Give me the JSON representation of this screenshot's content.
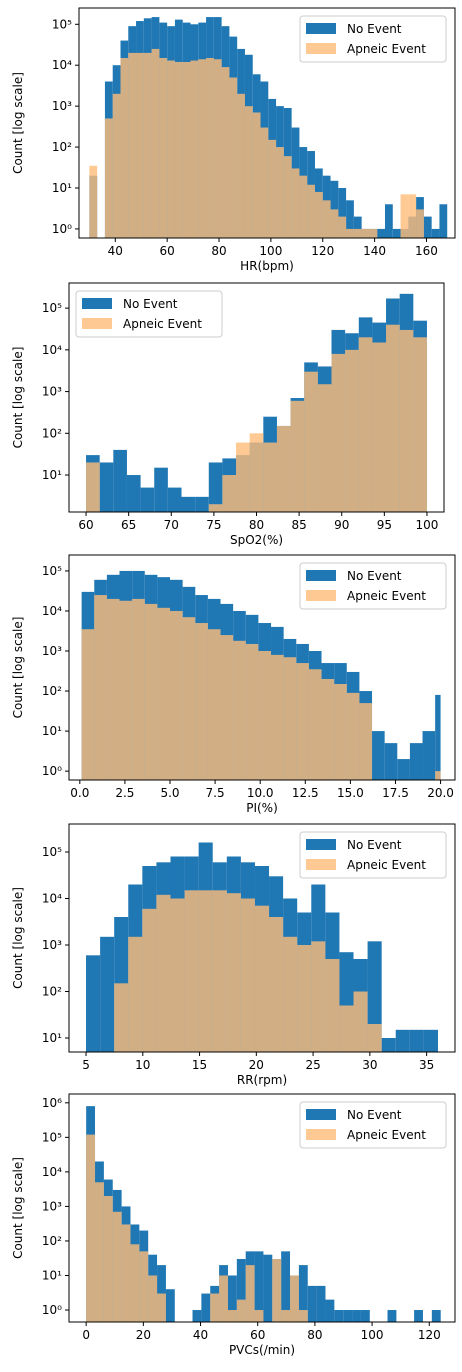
{
  "figure_ylabel": "Count [log scale]",
  "legend_labels": [
    "No Event",
    "Apneic Event"
  ],
  "colors": {
    "no_event": "#1f77b4",
    "apneic_event": "#ffbb78",
    "overlap": "#8c7e69"
  },
  "chart_data": [
    {
      "type": "bar",
      "xlabel": "HR(bpm)",
      "ylabel": "Count [log scale]",
      "yscale": "log",
      "xlim": [
        26,
        171
      ],
      "ylim": [
        0.6,
        250000
      ],
      "xticks": [
        40,
        60,
        80,
        100,
        120,
        140,
        160
      ],
      "yticks": [
        {
          "value": 1,
          "label": "10⁰"
        },
        {
          "value": 10,
          "label": "10¹"
        },
        {
          "value": 100,
          "label": "10²"
        },
        {
          "value": 1000,
          "label": "10³"
        },
        {
          "value": 10000,
          "label": "10⁴"
        },
        {
          "value": 100000,
          "label": "10⁵"
        }
      ],
      "legend": "top-right",
      "bin_edges": [
        30,
        33,
        36,
        39,
        42,
        45,
        48,
        51,
        54,
        57,
        60,
        63,
        66,
        69,
        72,
        75,
        78,
        81,
        84,
        87,
        90,
        93,
        96,
        99,
        102,
        105,
        108,
        111,
        114,
        117,
        120,
        123,
        126,
        129,
        132,
        135,
        138,
        141,
        144,
        147,
        150,
        153,
        156,
        159,
        162,
        165,
        168
      ],
      "series": [
        {
          "name": "No Event",
          "values": [
            20,
            0,
            4000,
            10000,
            40000,
            90000,
            120000,
            140000,
            150000,
            110000,
            90000,
            130000,
            110000,
            100000,
            110000,
            150000,
            150000,
            90000,
            50000,
            25000,
            18000,
            6000,
            4000,
            1500,
            1000,
            900,
            300,
            100,
            80,
            30,
            20,
            15,
            10,
            5,
            2,
            1,
            1,
            1,
            4,
            1,
            1,
            2,
            6,
            2,
            1,
            4
          ]
        },
        {
          "name": "Apneic Event",
          "values": [
            35,
            0,
            500,
            2000,
            15000,
            20000,
            20000,
            20000,
            25000,
            15000,
            13000,
            12000,
            12000,
            13000,
            14000,
            15000,
            14000,
            9000,
            5000,
            2000,
            1000,
            700,
            300,
            150,
            100,
            60,
            30,
            20,
            12,
            8,
            5,
            3,
            2,
            1,
            1,
            1,
            1,
            0,
            0,
            0,
            7,
            7,
            3,
            0,
            0,
            0
          ]
        }
      ]
    },
    {
      "type": "bar",
      "xlabel": "SpO2(%)",
      "ylabel": "Count [log scale]",
      "yscale": "log",
      "xlim": [
        58,
        102
      ],
      "ylim": [
        1.3,
        400000
      ],
      "xticks": [
        60,
        65,
        70,
        75,
        80,
        85,
        90,
        95,
        100
      ],
      "yticks": [
        {
          "value": 10,
          "label": "10¹"
        },
        {
          "value": 100,
          "label": "10²"
        },
        {
          "value": 1000,
          "label": "10³"
        },
        {
          "value": 10000,
          "label": "10⁴"
        },
        {
          "value": 100000,
          "label": "10⁵"
        }
      ],
      "legend": "top-left",
      "bin_edges": [
        60,
        61.6,
        63.2,
        64.8,
        66.4,
        68,
        69.6,
        71.2,
        72.8,
        74.4,
        76,
        77.6,
        79.2,
        80.8,
        82.4,
        84,
        85.6,
        87.2,
        88.8,
        90.4,
        92,
        93.6,
        95.2,
        96.8,
        98.4,
        100
      ],
      "series": [
        {
          "name": "No Event",
          "values": [
            30,
            20,
            40,
            10,
            5,
            15,
            5,
            3,
            3,
            20,
            25,
            30,
            60,
            250,
            150,
            700,
            5000,
            4000,
            30000,
            25000,
            60000,
            45000,
            170000,
            220000,
            50000
          ]
        },
        {
          "name": "Apneic Event",
          "values": [
            20,
            0,
            0,
            0,
            0,
            0,
            0,
            0,
            0,
            2,
            10,
            60,
            100,
            60,
            150,
            600,
            3000,
            1500,
            8000,
            10000,
            20000,
            15000,
            40000,
            30000,
            20000
          ]
        }
      ]
    },
    {
      "type": "bar",
      "xlabel": "PI(%)",
      "ylabel": "Count [log scale]",
      "yscale": "log",
      "xlim": [
        -0.6,
        20.8
      ],
      "ylim": [
        0.6,
        250000
      ],
      "xticks": [
        {
          "value": 0,
          "label": "0.0"
        },
        {
          "value": 2.5,
          "label": "2.5"
        },
        {
          "value": 5,
          "label": "5.0"
        },
        {
          "value": 7.5,
          "label": "7.5"
        },
        {
          "value": 10,
          "label": "10.0"
        },
        {
          "value": 12.5,
          "label": "12.5"
        },
        {
          "value": 15,
          "label": "15.0"
        },
        {
          "value": 17.5,
          "label": "17.5"
        },
        {
          "value": 20,
          "label": "20.0"
        }
      ],
      "yticks": [
        {
          "value": 1,
          "label": "10⁰"
        },
        {
          "value": 10,
          "label": "10¹"
        },
        {
          "value": 100,
          "label": "10²"
        },
        {
          "value": 1000,
          "label": "10³"
        },
        {
          "value": 10000,
          "label": "10⁴"
        },
        {
          "value": 100000,
          "label": "10⁵"
        }
      ],
      "legend": "top-right",
      "bin_edges": [
        0.1,
        0.8,
        1.5,
        2.2,
        2.9,
        3.6,
        4.3,
        5,
        5.7,
        6.4,
        7.1,
        7.8,
        8.5,
        9.2,
        9.9,
        10.6,
        11.3,
        12,
        12.7,
        13.4,
        14.1,
        14.8,
        15.5,
        16.2,
        16.9,
        17.6,
        18.3,
        19,
        19.7,
        20
      ],
      "series": [
        {
          "name": "No Event",
          "values": [
            30000,
            60000,
            80000,
            100000,
            100000,
            80000,
            70000,
            60000,
            40000,
            25000,
            20000,
            15000,
            10000,
            8000,
            5000,
            4000,
            2000,
            1500,
            1000,
            500,
            500,
            300,
            100,
            10,
            5,
            2,
            5,
            10,
            80
          ]
        },
        {
          "name": "Apneic Event",
          "values": [
            3500,
            25000,
            20000,
            18000,
            20000,
            15000,
            12000,
            10000,
            7000,
            5000,
            3500,
            2500,
            1800,
            1500,
            1000,
            800,
            700,
            500,
            350,
            200,
            150,
            90,
            50,
            0,
            0,
            0,
            0,
            0,
            1
          ]
        }
      ]
    },
    {
      "type": "bar",
      "xlabel": "RR(rpm)",
      "ylabel": "Count [log scale]",
      "yscale": "log",
      "xlim": [
        3.5,
        37.5
      ],
      "ylim": [
        5,
        400000
      ],
      "xticks": [
        5,
        10,
        15,
        20,
        25,
        30,
        35
      ],
      "yticks": [
        {
          "value": 10,
          "label": "10¹"
        },
        {
          "value": 100,
          "label": "10²"
        },
        {
          "value": 1000,
          "label": "10³"
        },
        {
          "value": 10000,
          "label": "10⁴"
        },
        {
          "value": 100000,
          "label": "10⁵"
        }
      ],
      "legend": "top-right",
      "bin_edges": [
        5,
        6.24,
        7.48,
        8.72,
        9.96,
        11.2,
        12.44,
        13.68,
        14.92,
        16.16,
        17.4,
        18.64,
        19.88,
        21.12,
        22.36,
        23.6,
        24.84,
        26.08,
        27.32,
        28.56,
        29.8,
        31.04,
        32.28,
        33.52,
        34.76,
        36
      ],
      "series": [
        {
          "name": "No Event",
          "values": [
            600,
            1500,
            4000,
            20000,
            50000,
            60000,
            80000,
            80000,
            160000,
            60000,
            80000,
            60000,
            50000,
            30000,
            10000,
            5000,
            20000,
            5000,
            700,
            500,
            1200,
            10,
            15,
            15,
            15
          ]
        },
        {
          "name": "Apneic Event",
          "values": [
            0,
            0,
            150,
            1500,
            6000,
            12000,
            10000,
            15000,
            15000,
            15000,
            13000,
            10000,
            7000,
            4000,
            1500,
            1000,
            1200,
            500,
            50,
            100,
            20,
            0,
            0,
            0,
            0
          ]
        }
      ]
    },
    {
      "type": "bar",
      "xlabel": "PVCs(/min)",
      "ylabel": "Count [log scale]",
      "yscale": "log",
      "xlim": [
        -6,
        129
      ],
      "ylim": [
        0.45,
        1800000
      ],
      "xticks": [
        0,
        20,
        40,
        60,
        80,
        100,
        120
      ],
      "yticks": [
        {
          "value": 1,
          "label": "10⁰"
        },
        {
          "value": 10,
          "label": "10¹"
        },
        {
          "value": 100,
          "label": "10²"
        },
        {
          "value": 1000,
          "label": "10³"
        },
        {
          "value": 10000,
          "label": "10⁴"
        },
        {
          "value": 100000,
          "label": "10⁵"
        },
        {
          "value": 1000000,
          "label": "10⁶"
        }
      ],
      "legend": "top-right",
      "bin_edges": [
        0,
        3.1,
        6.2,
        9.3,
        12.4,
        15.5,
        18.6,
        21.7,
        24.8,
        27.9,
        31,
        34.1,
        37.2,
        40.3,
        43.4,
        46.5,
        49.6,
        52.7,
        55.8,
        58.9,
        62,
        65.1,
        68.2,
        71.3,
        74.4,
        77.5,
        80.6,
        83.7,
        86.8,
        89.9,
        93,
        96.1,
        99.2,
        102.3,
        105.4,
        108.5,
        111.6,
        114.7,
        117.8,
        120.9,
        124
      ],
      "series": [
        {
          "name": "No Event",
          "values": [
            800000,
            20000,
            6000,
            3000,
            1000,
            300,
            200,
            40,
            20,
            4,
            0,
            0,
            1,
            3,
            5,
            20,
            10,
            30,
            50,
            50,
            40,
            30,
            50,
            10,
            20,
            5,
            5,
            2,
            1,
            1,
            1,
            1,
            0,
            0,
            1,
            0,
            0,
            1,
            0,
            1
          ]
        },
        {
          "name": "Apneic Event",
          "values": [
            120000,
            5000,
            2000,
            700,
            300,
            80,
            50,
            10,
            3,
            0,
            0,
            0,
            0,
            0,
            3,
            10,
            1,
            2,
            20,
            1,
            0,
            30,
            1,
            10,
            1,
            0,
            0,
            0,
            0,
            0,
            0,
            0,
            0,
            0,
            0,
            0,
            0,
            0,
            0,
            0
          ]
        }
      ]
    }
  ]
}
